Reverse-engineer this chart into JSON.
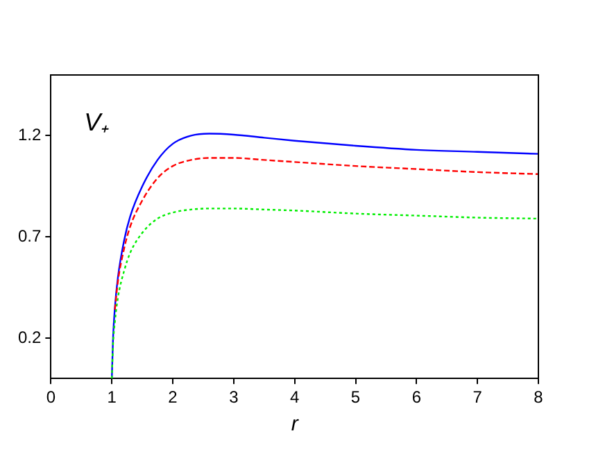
{
  "chart_data": {
    "type": "line",
    "xlabel": "r",
    "annotations": [
      "V₊"
    ],
    "xlim": [
      0,
      8
    ],
    "xticks": [
      0,
      1,
      2,
      3,
      4,
      5,
      6,
      7,
      8
    ],
    "ylim": [
      0,
      1.5
    ],
    "yticks": [
      0.2,
      0.7,
      1.2
    ],
    "grid": false,
    "legend": false,
    "marker": "none",
    "series": [
      {
        "color": "#0000ff",
        "line_style": "solid",
        "x": [
          1,
          1.02,
          1.05,
          1.1,
          1.2,
          1.3,
          1.5,
          1.75,
          2,
          2.3,
          2.6,
          3,
          3.5,
          4,
          5,
          6,
          7,
          8
        ],
        "values": [
          0,
          0.2,
          0.35,
          0.5,
          0.68,
          0.8,
          0.95,
          1.08,
          1.16,
          1.2,
          1.21,
          1.205,
          1.19,
          1.175,
          1.15,
          1.13,
          1.12,
          1.11
        ]
      },
      {
        "color": "#ff0000",
        "line_style": "dashed",
        "x": [
          1.05,
          1.1,
          1.2,
          1.3,
          1.5,
          1.75,
          2,
          2.3,
          2.6,
          3,
          3.5,
          4,
          5,
          6,
          7,
          8
        ],
        "values": [
          0.34,
          0.48,
          0.64,
          0.75,
          0.88,
          0.99,
          1.05,
          1.08,
          1.09,
          1.09,
          1.08,
          1.07,
          1.05,
          1.035,
          1.02,
          1.01
        ]
      },
      {
        "color": "#00ee00",
        "line_style": "dotted",
        "x": [
          1,
          1.02,
          1.05,
          1.1,
          1.2,
          1.3,
          1.5,
          1.75,
          2,
          2.3,
          2.6,
          3,
          3.5,
          4,
          5,
          6,
          7,
          8
        ],
        "values": [
          0,
          0.17,
          0.28,
          0.4,
          0.53,
          0.62,
          0.72,
          0.79,
          0.82,
          0.835,
          0.84,
          0.84,
          0.835,
          0.83,
          0.815,
          0.805,
          0.795,
          0.79
        ]
      }
    ]
  }
}
